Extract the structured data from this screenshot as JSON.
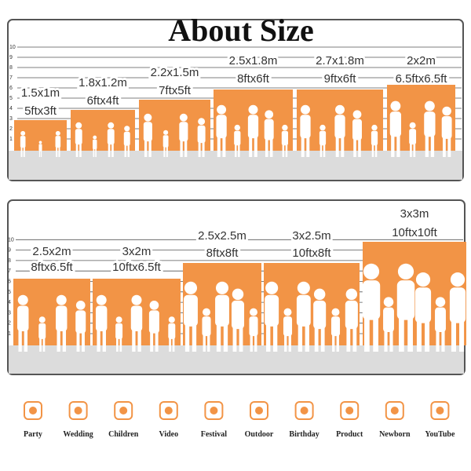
{
  "title": "About Size",
  "ruler": [
    1,
    2,
    3,
    4,
    5,
    6,
    7,
    8,
    9,
    10
  ],
  "panels": [
    {
      "items": [
        {
          "metric": "1.5x1m",
          "imperial": "5ftx3ft"
        },
        {
          "metric": "1.8x1.2m",
          "imperial": "6ftx4ft"
        },
        {
          "metric": "2.2x1.5m",
          "imperial": "7ftx5ft"
        },
        {
          "metric": "2.5x1.8m",
          "imperial": "8ftx6ft"
        },
        {
          "metric": "2.7x1.8m",
          "imperial": "9ftx6ft"
        },
        {
          "metric": "2x2m",
          "imperial": "6.5ftx6.5ft"
        }
      ]
    },
    {
      "items": [
        {
          "metric": "2.5x2m",
          "imperial": "8ftx6.5ft"
        },
        {
          "metric": "3x2m",
          "imperial": "10ftx6.5ft"
        },
        {
          "metric": "2.5x2.5m",
          "imperial": "8ftx8ft"
        },
        {
          "metric": "3x2.5m",
          "imperial": "10ftx8ft"
        },
        {
          "metric": "3x3m",
          "imperial": "10ftx10ft"
        }
      ]
    }
  ],
  "uses": [
    "Party",
    "Wedding",
    "Children",
    "Video",
    "Festival",
    "Outdoor",
    "Birthday",
    "Product",
    "Newborn",
    "YouTube"
  ]
}
